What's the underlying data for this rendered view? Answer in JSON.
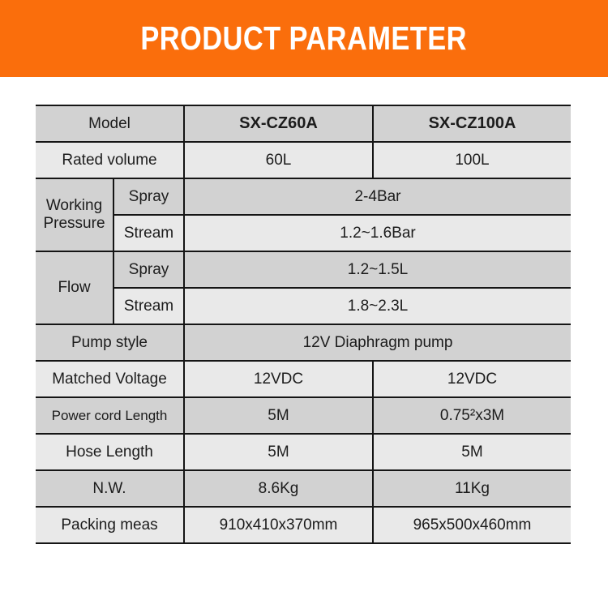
{
  "banner": {
    "title": "PRODUCT PARAMETER"
  },
  "colors": {
    "banner_bg": "#FA6E0C",
    "row_dark": "#D2D2D2",
    "row_light": "#E9E9E9",
    "border": "#151515",
    "text": "#1C1C1C"
  },
  "table": {
    "model": {
      "label": "Model",
      "col1": "SX-CZ60A",
      "col2": "SX-CZ100A"
    },
    "rated_volume": {
      "label": "Rated volume",
      "col1": "60L",
      "col2": "100L"
    },
    "working_pressure": {
      "label": "Working Pressure",
      "spray_label": "Spray",
      "spray_value": "2-4Bar",
      "stream_label": "Stream",
      "stream_value": "1.2~1.6Bar"
    },
    "flow": {
      "label": "Flow",
      "spray_label": "Spray",
      "spray_value": "1.2~1.5L",
      "stream_label": "Stream",
      "stream_value": "1.8~2.3L"
    },
    "pump_style": {
      "label": "Pump style",
      "value": "12V Diaphragm pump"
    },
    "matched_voltage": {
      "label": "Matched Voltage",
      "col1": "12VDC",
      "col2": "12VDC"
    },
    "power_cord_length": {
      "label": "Power cord Length",
      "col1": "5M",
      "col2": "0.75²x3M"
    },
    "hose_length": {
      "label": "Hose Length",
      "col1": "5M",
      "col2": "5M"
    },
    "nw": {
      "label": "N.W.",
      "col1": "8.6Kg",
      "col2": "11Kg"
    },
    "packing_meas": {
      "label": "Packing meas",
      "col1": "910x410x370mm",
      "col2": "965x500x460mm"
    }
  }
}
